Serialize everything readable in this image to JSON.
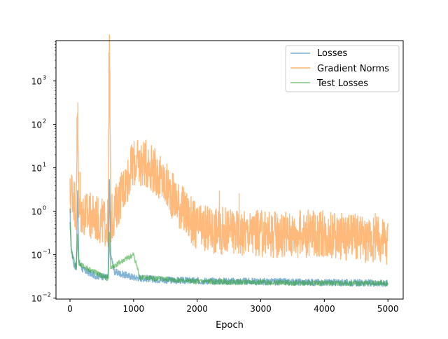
{
  "chart_data": {
    "type": "line",
    "title": "",
    "xlabel": "Epoch",
    "ylabel": "",
    "xlim": [
      -220,
      5240
    ],
    "ylim": [
      0.0095,
      8500
    ],
    "yscale": "log",
    "grid": false,
    "legend_position": "upper-right",
    "x_ticks": [
      0,
      1000,
      2000,
      3000,
      4000,
      5000
    ],
    "x_tick_labels": [
      "0",
      "1000",
      "2000",
      "3000",
      "4000",
      "5000"
    ],
    "y_ticks": [
      0.01,
      0.1,
      1,
      10,
      100,
      1000
    ],
    "y_tick_labels": [
      "10",
      "10",
      "10",
      "10",
      "10",
      "10"
    ],
    "y_tick_exponents": [
      "−2",
      "−1",
      "0",
      "1",
      "2",
      "3"
    ],
    "series": [
      {
        "name": "Losses",
        "color": "#1f77b4",
        "approx_points": [
          [
            0,
            1.0
          ],
          [
            20,
            0.15
          ],
          [
            60,
            0.06
          ],
          [
            100,
            0.05
          ],
          [
            120,
            3.5
          ],
          [
            140,
            0.07
          ],
          [
            200,
            0.045
          ],
          [
            400,
            0.033
          ],
          [
            600,
            0.03
          ],
          [
            620,
            4.5
          ],
          [
            640,
            0.1
          ],
          [
            700,
            0.04
          ],
          [
            1000,
            0.03
          ],
          [
            1500,
            0.026
          ],
          [
            2000,
            0.025
          ],
          [
            3000,
            0.024
          ],
          [
            4000,
            0.023
          ],
          [
            5000,
            0.022
          ]
        ]
      },
      {
        "name": "Gradient Norms",
        "color": "#ff7f0e",
        "approx_points": [
          [
            0,
            2.0
          ],
          [
            30,
            3.5
          ],
          [
            100,
            1.0
          ],
          [
            120,
            320
          ],
          [
            140,
            1.0
          ],
          [
            600,
            0.5
          ],
          [
            620,
            4500
          ],
          [
            640,
            0.6
          ],
          [
            1000,
            13
          ],
          [
            1250,
            12
          ],
          [
            2000,
            0.4
          ],
          [
            3000,
            0.3
          ],
          [
            4000,
            0.3
          ],
          [
            5000,
            0.2
          ]
        ],
        "spikes": [
          [
            110,
            150
          ],
          [
            125,
            320
          ],
          [
            160,
            8
          ],
          [
            612,
            4500
          ],
          [
            628,
            1800
          ],
          [
            1000,
            13
          ],
          [
            1255,
            12
          ],
          [
            1530,
            3.5
          ],
          [
            1700,
            3
          ],
          [
            2350,
            3
          ],
          [
            2660,
            2.6
          ],
          [
            4800,
            0.9
          ]
        ]
      },
      {
        "name": "Test Losses",
        "color": "#2ca02c",
        "approx_points": [
          [
            0,
            0.5
          ],
          [
            20,
            0.12
          ],
          [
            100,
            0.05
          ],
          [
            120,
            0.3
          ],
          [
            140,
            0.06
          ],
          [
            600,
            0.028
          ],
          [
            620,
            0.3
          ],
          [
            640,
            0.05
          ],
          [
            1000,
            0.1
          ],
          [
            1100,
            0.03
          ],
          [
            2000,
            0.024
          ],
          [
            3000,
            0.023
          ],
          [
            4000,
            0.022
          ],
          [
            5000,
            0.022
          ]
        ]
      }
    ]
  }
}
